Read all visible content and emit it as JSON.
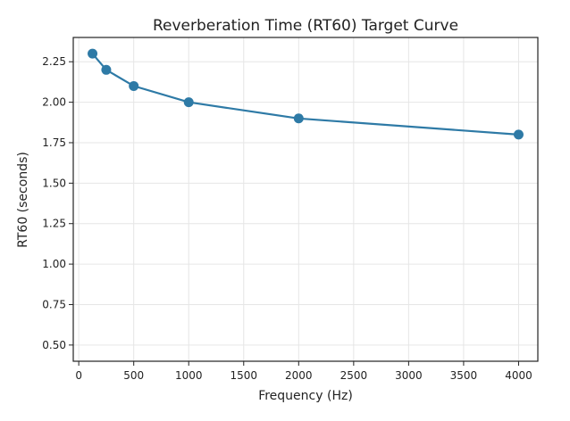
{
  "chart_data": {
    "type": "line",
    "title": "Reverberation Time (RT60) Target Curve",
    "xlabel": "Frequency (Hz)",
    "ylabel": "RT60 (seconds)",
    "xlim": [
      -50,
      4175
    ],
    "ylim": [
      0.4,
      2.4
    ],
    "xticks": [
      0,
      500,
      1000,
      1500,
      2000,
      2500,
      3000,
      3500,
      4000
    ],
    "xtick_labels": [
      "0",
      "500",
      "1000",
      "1500",
      "2000",
      "2500",
      "3000",
      "3500",
      "4000"
    ],
    "yticks": [
      0.5,
      0.75,
      1.0,
      1.25,
      1.5,
      1.75,
      2.0,
      2.25
    ],
    "ytick_labels": [
      "0.50",
      "0.75",
      "1.00",
      "1.25",
      "1.50",
      "1.75",
      "2.00",
      "2.25"
    ],
    "grid": true,
    "series": [
      {
        "x": [
          125,
          250,
          500,
          1000,
          2000,
          4000
        ],
        "y": [
          2.3,
          2.2,
          2.1,
          2.0,
          1.9,
          1.8
        ],
        "color": "#2e7aa6",
        "marker": "circle"
      }
    ]
  }
}
